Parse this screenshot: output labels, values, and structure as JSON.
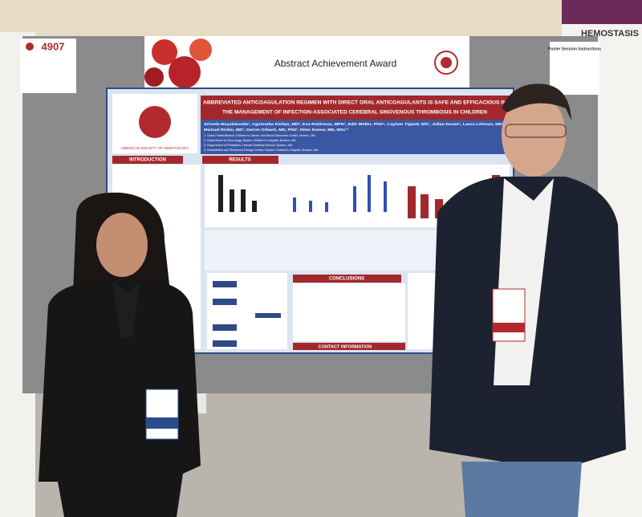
{
  "board_number": "4907",
  "award_banner": "Abstract Achievement Award",
  "poster": {
    "society": "AMERICAN SOCIETY OF HEMATOLOGY",
    "title_lines": [
      "ABBREVIATED ANTICOAGULATION REGIMEN WITH DIRECT ORAL ANTICOAGULANTS IS SAFE AND EFFICACIOUS IN",
      "THE MANAGEMENT OF INFECTION-ASSOCIATED CEREBRAL SINOVENOUS THROMBOSIS IN CHILDREN"
    ],
    "author_lines": [
      "Sriveda Boyalakuntla¹, Agnieszka Kielian, MD², Eva Robinson, MPH¹, Edie Weller, PhD⁴, Caytum Tippett, MS¹, Julian Duzan¹, Laura Lehman, MD²,",
      "Michael Rivkin, MD², Darren Orbach, MD, PhD², Riten Kumar, MD, MSc¹³"
    ],
    "affiliations": [
      "1. Dana Farber/Boston Children's Cancer and Blood Disorders Center, Boston, MA",
      "2. Department of Neurology, Boston Children's Hospital, Boston, MA",
      "3. Department of Pediatrics, Harvard Medical School, Boston, MA",
      "4. Biostatistics and Research Design Center, Boston Children's Hospital, Boston, MA"
    ],
    "sections": [
      "INTRODUCTION",
      "RESULTS",
      "CONCLUSIONS",
      "CONTACT INFORMATION"
    ]
  },
  "side_signs": {
    "instructions": "Poster Session Instructions",
    "hemostasis": "HEMOSTASIS"
  }
}
